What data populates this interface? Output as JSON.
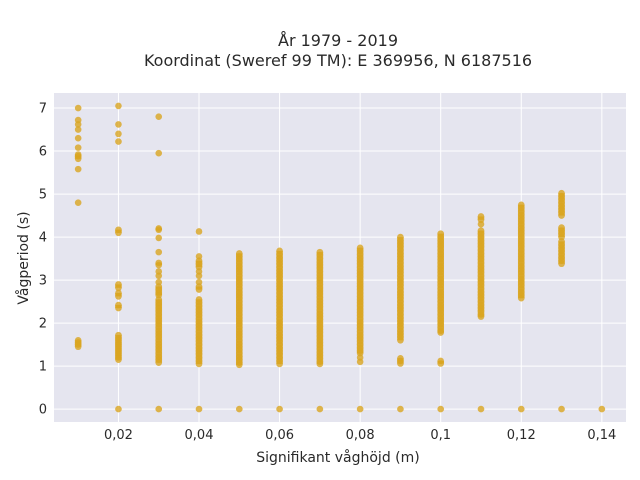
{
  "chart_data": {
    "type": "scatter",
    "title_line1": "År 1979 - 2019",
    "title_line2": "Koordinat (Sweref 99 TM): E 369956, N 6187516",
    "xlabel": "Signifikant våghöjd (m)",
    "ylabel": "Vågperiod (s)",
    "xlim": [
      0.004,
      0.146
    ],
    "ylim": [
      -0.3,
      7.35
    ],
    "x_ticks": [
      0.02,
      0.04,
      0.06,
      0.08,
      0.1,
      0.12,
      0.14
    ],
    "x_tick_labels": [
      "0,02",
      "0,04",
      "0,06",
      "0,08",
      "0,1",
      "0,12",
      "0,14"
    ],
    "y_ticks": [
      0,
      1,
      2,
      3,
      4,
      5,
      6,
      7
    ],
    "y_tick_labels": [
      "0",
      "1",
      "2",
      "3",
      "4",
      "5",
      "6",
      "7"
    ],
    "grid": true,
    "colors": {
      "marker": "#d9a521",
      "plot_bg": "#e5e5ef",
      "grid": "#ffffff"
    },
    "series": [
      {
        "x": 0.01,
        "y": [
          7.0,
          6.72,
          6.62,
          6.5,
          6.3,
          6.08,
          5.92,
          5.88,
          5.82,
          5.58,
          4.8,
          1.6,
          1.55,
          1.5,
          1.45
        ]
      },
      {
        "x": 0.02,
        "y": [
          7.05,
          6.62,
          6.4,
          6.22,
          4.17,
          4.1,
          2.9,
          2.82,
          2.7,
          2.62,
          2.42,
          2.35,
          1.72,
          1.65,
          1.6,
          1.55,
          1.5,
          1.45,
          1.4,
          1.35,
          1.3,
          1.25,
          1.2,
          1.15,
          0.0
        ]
      },
      {
        "x": 0.03,
        "y": [
          6.8,
          5.95,
          4.2,
          4.17,
          3.98,
          3.65,
          3.4,
          3.35,
          3.2,
          3.1,
          2.95,
          2.85,
          2.78,
          2.7,
          2.65,
          2.55,
          2.48,
          2.42,
          2.35,
          2.28,
          2.2,
          2.12,
          2.05,
          1.98,
          1.9,
          1.82,
          1.75,
          1.68,
          1.6,
          1.52,
          1.45,
          1.38,
          1.3,
          1.22,
          1.15,
          1.08,
          0.0
        ]
      },
      {
        "x": 0.04,
        "y": [
          4.13,
          3.55,
          3.45,
          3.38,
          3.3,
          3.2,
          3.1,
          2.95,
          2.85,
          2.78,
          2.55,
          2.48,
          2.4,
          2.32,
          2.25,
          2.18,
          2.1,
          2.02,
          1.95,
          1.88,
          1.8,
          1.72,
          1.65,
          1.58,
          1.5,
          1.42,
          1.35,
          1.28,
          1.2,
          1.12,
          1.05,
          0.0
        ]
      },
      {
        "x": 0.05,
        "y": [
          3.62,
          3.55,
          3.48,
          3.4,
          3.32,
          3.25,
          3.18,
          3.1,
          3.02,
          2.95,
          2.88,
          2.8,
          2.72,
          2.65,
          2.58,
          2.5,
          2.42,
          2.35,
          2.28,
          2.2,
          2.12,
          2.05,
          1.98,
          1.9,
          1.82,
          1.75,
          1.68,
          1.6,
          1.52,
          1.45,
          1.38,
          1.3,
          1.22,
          1.15,
          1.08,
          1.03,
          0.0
        ]
      },
      {
        "x": 0.06,
        "y": [
          3.68,
          3.6,
          3.52,
          3.45,
          3.38,
          3.3,
          3.22,
          3.15,
          3.08,
          3.0,
          2.92,
          2.85,
          2.78,
          2.7,
          2.62,
          2.55,
          2.48,
          2.4,
          2.32,
          2.25,
          2.18,
          2.1,
          2.02,
          1.95,
          1.88,
          1.8,
          1.72,
          1.65,
          1.58,
          1.5,
          1.42,
          1.35,
          1.28,
          1.2,
          1.12,
          1.05,
          0.0
        ]
      },
      {
        "x": 0.07,
        "y": [
          3.65,
          3.58,
          3.5,
          3.42,
          3.35,
          3.28,
          3.2,
          3.12,
          3.05,
          2.98,
          2.9,
          2.82,
          2.75,
          2.68,
          2.6,
          2.52,
          2.45,
          2.38,
          2.3,
          2.22,
          2.15,
          2.08,
          2.0,
          1.92,
          1.85,
          1.78,
          1.7,
          1.62,
          1.55,
          1.48,
          1.4,
          1.32,
          1.25,
          1.18,
          1.1,
          1.05,
          0.0
        ]
      },
      {
        "x": 0.08,
        "y": [
          3.75,
          3.68,
          3.6,
          3.52,
          3.45,
          3.38,
          3.3,
          3.22,
          3.15,
          3.08,
          3.0,
          2.92,
          2.85,
          2.78,
          2.7,
          2.62,
          2.55,
          2.48,
          2.4,
          2.32,
          2.25,
          2.18,
          2.1,
          2.02,
          1.95,
          1.88,
          1.8,
          1.72,
          1.65,
          1.58,
          1.5,
          1.42,
          1.35,
          1.3,
          1.2,
          1.1,
          0.0
        ]
      },
      {
        "x": 0.09,
        "y": [
          4.0,
          3.92,
          3.85,
          3.78,
          3.7,
          3.62,
          3.55,
          3.48,
          3.4,
          3.32,
          3.25,
          3.18,
          3.1,
          3.02,
          2.95,
          2.88,
          2.8,
          2.72,
          2.65,
          2.58,
          2.5,
          2.42,
          2.35,
          2.28,
          2.2,
          2.12,
          2.05,
          1.98,
          1.9,
          1.82,
          1.75,
          1.68,
          1.6,
          1.18,
          1.12,
          1.06,
          0.0
        ]
      },
      {
        "x": 0.1,
        "y": [
          4.08,
          4.0,
          3.92,
          3.85,
          3.78,
          3.7,
          3.62,
          3.55,
          3.48,
          3.4,
          3.32,
          3.25,
          3.18,
          3.1,
          3.02,
          2.95,
          2.88,
          2.8,
          2.72,
          2.65,
          2.58,
          2.5,
          2.42,
          2.35,
          2.28,
          2.2,
          2.12,
          2.05,
          1.98,
          1.9,
          1.82,
          1.78,
          1.12,
          1.06,
          0.0
        ]
      },
      {
        "x": 0.11,
        "y": [
          4.48,
          4.4,
          4.3,
          4.15,
          4.08,
          4.0,
          3.92,
          3.85,
          3.78,
          3.7,
          3.62,
          3.55,
          3.48,
          3.4,
          3.32,
          3.25,
          3.18,
          3.1,
          3.02,
          2.95,
          2.88,
          2.8,
          2.72,
          2.65,
          2.58,
          2.5,
          2.42,
          2.35,
          2.28,
          2.2,
          2.15,
          0.0
        ]
      },
      {
        "x": 0.12,
        "y": [
          4.75,
          4.68,
          4.6,
          4.52,
          4.45,
          4.38,
          4.3,
          4.22,
          4.15,
          4.08,
          4.0,
          3.92,
          3.85,
          3.78,
          3.7,
          3.62,
          3.55,
          3.48,
          3.4,
          3.32,
          3.25,
          3.18,
          3.1,
          3.02,
          2.95,
          2.88,
          2.8,
          2.72,
          2.65,
          2.58,
          0.0
        ]
      },
      {
        "x": 0.13,
        "y": [
          5.02,
          4.95,
          4.88,
          4.8,
          4.72,
          4.65,
          4.58,
          4.5,
          4.22,
          4.15,
          4.08,
          4.0,
          3.9,
          3.82,
          3.75,
          3.68,
          3.6,
          3.52,
          3.45,
          3.38,
          0.0
        ]
      },
      {
        "x": 0.14,
        "y": [
          0.0
        ]
      }
    ]
  }
}
